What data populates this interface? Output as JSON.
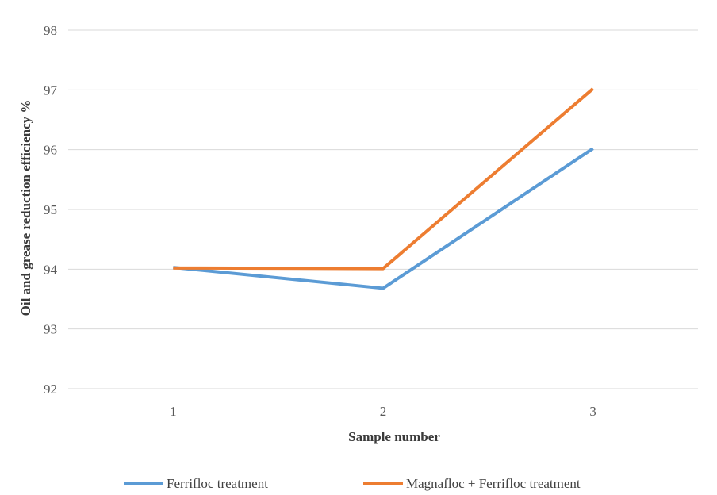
{
  "chart_data": {
    "type": "line",
    "title": "",
    "xlabel": "Sample  number",
    "ylabel": "Oil and grease reduction  efficiency %",
    "categories": [
      "1",
      "2",
      "3"
    ],
    "ylim": [
      92,
      98
    ],
    "yticks": [
      92,
      93,
      94,
      95,
      96,
      97,
      98
    ],
    "grid": true,
    "legend_position": "bottom",
    "series": [
      {
        "name": "Ferrifloc treatment",
        "values": [
          94.03,
          93.68,
          96.02
        ],
        "color": "#5b9bd5"
      },
      {
        "name": "Magnafloc + Ferrifloc treatment",
        "values": [
          94.02,
          94.01,
          97.02
        ],
        "color": "#ed7d31"
      }
    ]
  }
}
